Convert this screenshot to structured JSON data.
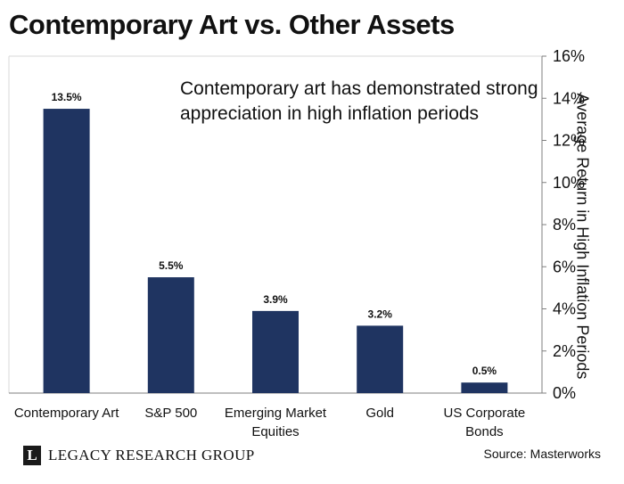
{
  "chart_data": {
    "type": "bar",
    "title": "Contemporary Art vs. Other Assets",
    "annotation": [
      "Contemporary art has demonstrated strong",
      "appreciation in high inflation periods"
    ],
    "categories": [
      [
        "Contemporary Art"
      ],
      [
        "S&P 500"
      ],
      [
        "Emerging Market",
        "Equities"
      ],
      [
        "Gold"
      ],
      [
        "US Corporate",
        "Bonds"
      ]
    ],
    "values": [
      13.5,
      5.5,
      3.9,
      3.2,
      0.5
    ],
    "value_labels": [
      "13.5%",
      "5.5%",
      "3.9%",
      "3.2%",
      "0.5%"
    ],
    "ylabel": "Average Return in High Inflation Periods",
    "y_axis_position": "right",
    "ylim": [
      0,
      16
    ],
    "yticks": [
      0,
      2,
      4,
      6,
      8,
      10,
      12,
      14,
      16
    ],
    "ytick_labels": [
      "0%",
      "2%",
      "4%",
      "6%",
      "8%",
      "10%",
      "12%",
      "14%",
      "16%"
    ],
    "grid": false,
    "bar_color": "#1f3461"
  },
  "footer": {
    "brand": "LEGACY RESEARCH GROUP",
    "brand_mark": "L",
    "source": "Source: Masterworks"
  }
}
